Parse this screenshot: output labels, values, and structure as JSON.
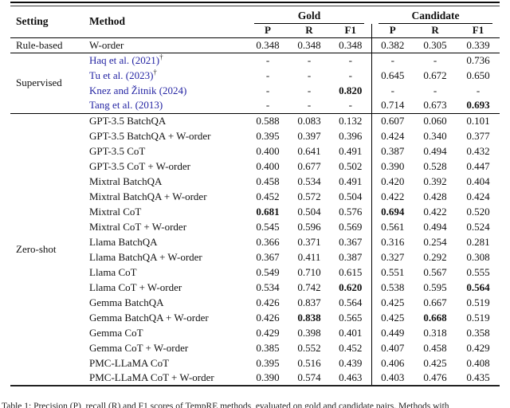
{
  "table": {
    "headers": {
      "setting": "Setting",
      "method": "Method",
      "gold": "Gold",
      "candidate": "Candidate",
      "sub": [
        "P",
        "R",
        "F1"
      ]
    },
    "dagger": "†",
    "sections": [
      {
        "setting": "Rule-based",
        "rows": [
          {
            "method": "W-order",
            "gold": [
              "0.348",
              "0.348",
              "0.348"
            ],
            "cand": [
              "0.382",
              "0.305",
              "0.339"
            ]
          }
        ]
      },
      {
        "setting": "Supervised",
        "rows": [
          {
            "method": "Haq et al. (2021)",
            "link": true,
            "dagger": true,
            "gold": [
              "-",
              "-",
              "-"
            ],
            "cand": [
              "-",
              "-",
              "0.736"
            ]
          },
          {
            "method": "Tu et al. (2023)",
            "link": true,
            "dagger": true,
            "gold": [
              "-",
              "-",
              "-"
            ],
            "cand": [
              "0.645",
              "0.672",
              "0.650"
            ]
          },
          {
            "method": "Knez and Žitnik (2024)",
            "link": true,
            "gold": [
              "-",
              "-",
              "0.820"
            ],
            "cand": [
              "-",
              "-",
              "-"
            ],
            "bold": [
              "g2"
            ]
          },
          {
            "method": "Tang et al. (2013)",
            "link": true,
            "gold": [
              "-",
              "-",
              "-"
            ],
            "cand": [
              "0.714",
              "0.673",
              "0.693"
            ],
            "bold": [
              "c2"
            ]
          }
        ]
      },
      {
        "setting": "Zero-shot",
        "rows": [
          {
            "method": "GPT-3.5 BatchQA",
            "gold": [
              "0.588",
              "0.083",
              "0.132"
            ],
            "cand": [
              "0.607",
              "0.060",
              "0.101"
            ]
          },
          {
            "method": "GPT-3.5 BatchQA + W-order",
            "gold": [
              "0.395",
              "0.397",
              "0.396"
            ],
            "cand": [
              "0.424",
              "0.340",
              "0.377"
            ]
          },
          {
            "method": "GPT-3.5 CoT",
            "gold": [
              "0.400",
              "0.641",
              "0.491"
            ],
            "cand": [
              "0.387",
              "0.494",
              "0.432"
            ]
          },
          {
            "method": "GPT-3.5 CoT + W-order",
            "gold": [
              "0.400",
              "0.677",
              "0.502"
            ],
            "cand": [
              "0.390",
              "0.528",
              "0.447"
            ]
          },
          {
            "method": "Mixtral BatchQA",
            "gold": [
              "0.458",
              "0.534",
              "0.491"
            ],
            "cand": [
              "0.420",
              "0.392",
              "0.404"
            ]
          },
          {
            "method": "Mixtral BatchQA + W-order",
            "gold": [
              "0.452",
              "0.572",
              "0.504"
            ],
            "cand": [
              "0.422",
              "0.428",
              "0.424"
            ]
          },
          {
            "method": "Mixtral CoT",
            "gold": [
              "0.681",
              "0.504",
              "0.576"
            ],
            "cand": [
              "0.694",
              "0.422",
              "0.520"
            ],
            "bold": [
              "g0",
              "c0"
            ]
          },
          {
            "method": "Mixtral CoT + W-order",
            "gold": [
              "0.545",
              "0.596",
              "0.569"
            ],
            "cand": [
              "0.561",
              "0.494",
              "0.524"
            ]
          },
          {
            "method": "Llama BatchQA",
            "gold": [
              "0.366",
              "0.371",
              "0.367"
            ],
            "cand": [
              "0.316",
              "0.254",
              "0.281"
            ]
          },
          {
            "method": "Llama BatchQA + W-order",
            "gold": [
              "0.367",
              "0.411",
              "0.387"
            ],
            "cand": [
              "0.327",
              "0.292",
              "0.308"
            ]
          },
          {
            "method": "Llama CoT",
            "gold": [
              "0.549",
              "0.710",
              "0.615"
            ],
            "cand": [
              "0.551",
              "0.567",
              "0.555"
            ]
          },
          {
            "method": "Llama CoT + W-order",
            "gold": [
              "0.534",
              "0.742",
              "0.620"
            ],
            "cand": [
              "0.538",
              "0.595",
              "0.564"
            ],
            "bold": [
              "g2",
              "c2"
            ]
          },
          {
            "method": "Gemma BatchQA",
            "gold": [
              "0.426",
              "0.837",
              "0.564"
            ],
            "cand": [
              "0.425",
              "0.667",
              "0.519"
            ]
          },
          {
            "method": "Gemma BatchQA + W-order",
            "gold": [
              "0.426",
              "0.838",
              "0.565"
            ],
            "cand": [
              "0.425",
              "0.668",
              "0.519"
            ],
            "bold": [
              "g1",
              "c1"
            ]
          },
          {
            "method": "Gemma CoT",
            "gold": [
              "0.429",
              "0.398",
              "0.401"
            ],
            "cand": [
              "0.449",
              "0.318",
              "0.358"
            ]
          },
          {
            "method": "Gemma CoT + W-order",
            "gold": [
              "0.385",
              "0.552",
              "0.452"
            ],
            "cand": [
              "0.407",
              "0.458",
              "0.429"
            ]
          },
          {
            "method": "PMC-LLaMA CoT",
            "gold": [
              "0.395",
              "0.516",
              "0.439"
            ],
            "cand": [
              "0.406",
              "0.425",
              "0.408"
            ]
          },
          {
            "method": "PMC-LLaMA CoT + W-order",
            "gold": [
              "0.390",
              "0.574",
              "0.463"
            ],
            "cand": [
              "0.403",
              "0.476",
              "0.435"
            ]
          }
        ]
      }
    ]
  },
  "caption": "Table 1: Precision (P), recall (R) and F1 scores of TempRE methods, evaluated on gold and candidate pairs. Methods with",
  "colors": {
    "citation_blue": "#2424a3",
    "rule_black": "#000000",
    "text": "#111111"
  }
}
